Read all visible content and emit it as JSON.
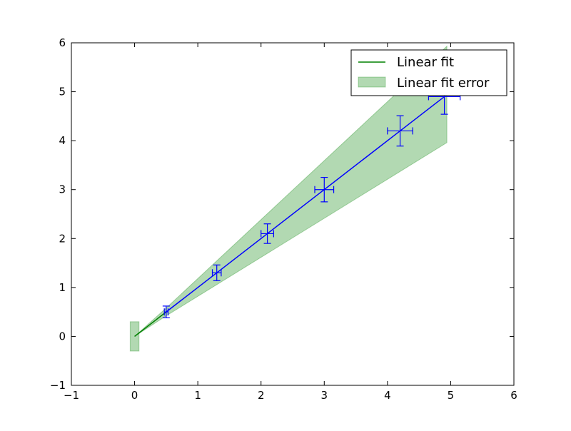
{
  "chart_data": {
    "type": "line",
    "title": "",
    "xlabel": "",
    "ylabel": "",
    "xlim": [
      -1,
      6
    ],
    "ylim": [
      -1,
      6
    ],
    "xticks": [
      -1,
      0,
      1,
      2,
      3,
      4,
      5,
      6
    ],
    "yticks": [
      -1,
      0,
      1,
      2,
      3,
      4,
      5,
      6
    ],
    "grid": false,
    "legend_position": "top-right",
    "legend": [
      "Linear fit",
      "Linear fit error"
    ],
    "series": [
      {
        "name": "Linear fit",
        "kind": "line",
        "color": "#008000",
        "x": [
          0,
          0.5
        ],
        "y": [
          0,
          0.5
        ]
      },
      {
        "name": "Linear fit error",
        "kind": "band",
        "color": "#008000",
        "x": [
          0,
          0.5,
          4.94
        ],
        "y_upper": [
          0,
          0.58,
          5.93
        ],
        "y_lower": [
          0,
          0.42,
          3.96
        ],
        "extra_patch": {
          "x": [
            -0.07,
            0.07
          ],
          "y": [
            -0.3,
            0.3
          ]
        }
      },
      {
        "kind": "errorbar",
        "color": "#0000ff",
        "x": [
          0.5,
          1.3,
          2.1,
          3.0,
          4.2,
          4.9
        ],
        "y": [
          0.5,
          1.3,
          2.1,
          3.0,
          4.2,
          4.9
        ],
        "xerr": [
          0.03,
          0.07,
          0.1,
          0.15,
          0.2,
          0.25
        ],
        "yerr": [
          0.12,
          0.16,
          0.2,
          0.25,
          0.31,
          0.36
        ]
      }
    ]
  }
}
